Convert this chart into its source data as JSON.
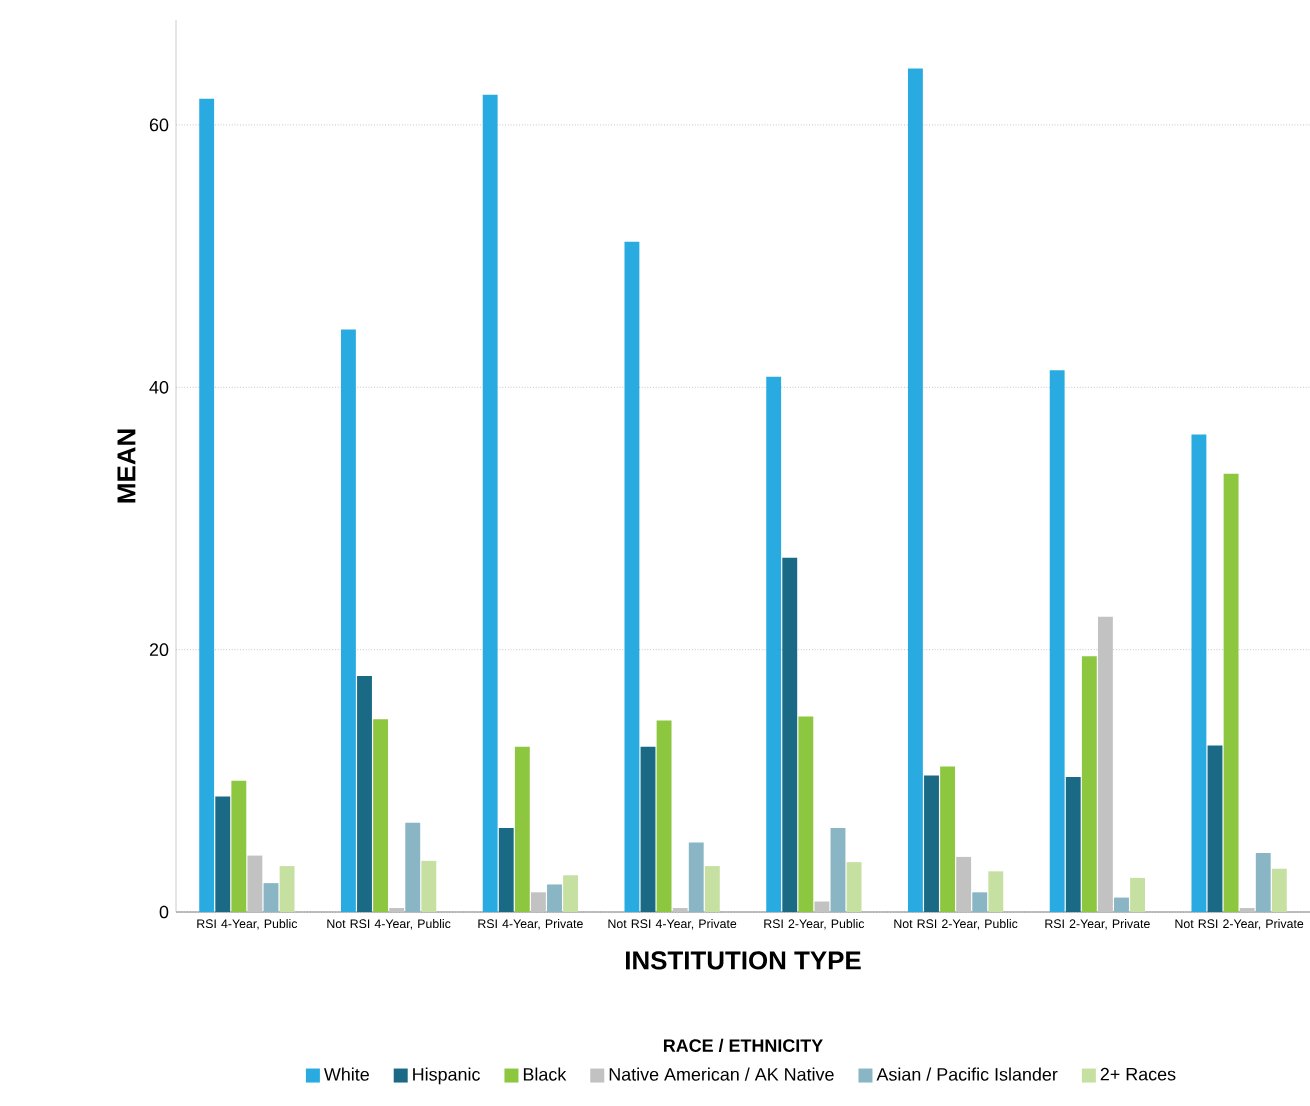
{
  "chart_data": {
    "type": "bar",
    "xlabel": "INSTITUTION TYPE",
    "ylabel": "MEAN",
    "legend_title": "RACE / ETHNICITY",
    "categories": [
      "RSI 4-Year, Public",
      "Not RSI 4-Year, Public",
      "RSI 4-Year, Private",
      "Not RSI 4-Year, Private",
      "RSI 2-Year, Public",
      "Not RSI 2-Year, Public",
      "RSI 2-Year, Private",
      "Not RSI 2-Year, Private"
    ],
    "series": [
      {
        "name": "White",
        "color": "#29abe2",
        "values": [
          62.0,
          44.4,
          62.3,
          51.1,
          40.8,
          64.3,
          41.3,
          36.4
        ]
      },
      {
        "name": "Hispanic",
        "color": "#1a6a85",
        "values": [
          8.8,
          18.0,
          6.4,
          12.6,
          27.0,
          10.4,
          10.3,
          12.7
        ]
      },
      {
        "name": "Black",
        "color": "#8dc63f",
        "values": [
          10.0,
          14.7,
          12.6,
          14.6,
          14.9,
          11.1,
          19.5,
          33.4
        ]
      },
      {
        "name": "Native American / AK Native",
        "color": "#c2c2c2",
        "values": [
          4.3,
          0.3,
          1.5,
          0.3,
          0.8,
          4.2,
          22.5,
          0.3
        ]
      },
      {
        "name": "Asian / Pacific Islander",
        "color": "#89b5c4",
        "values": [
          2.2,
          6.8,
          2.1,
          5.3,
          6.4,
          1.5,
          1.1,
          4.5
        ]
      },
      {
        "name": "2+ Races",
        "color": "#c5e0a0",
        "values": [
          3.5,
          3.9,
          2.8,
          3.5,
          3.8,
          3.1,
          2.6,
          3.3
        ]
      }
    ],
    "ylim": [
      0,
      68
    ],
    "yticks": [
      0,
      20,
      40,
      60
    ],
    "grid": "y",
    "legend": "bottom"
  }
}
